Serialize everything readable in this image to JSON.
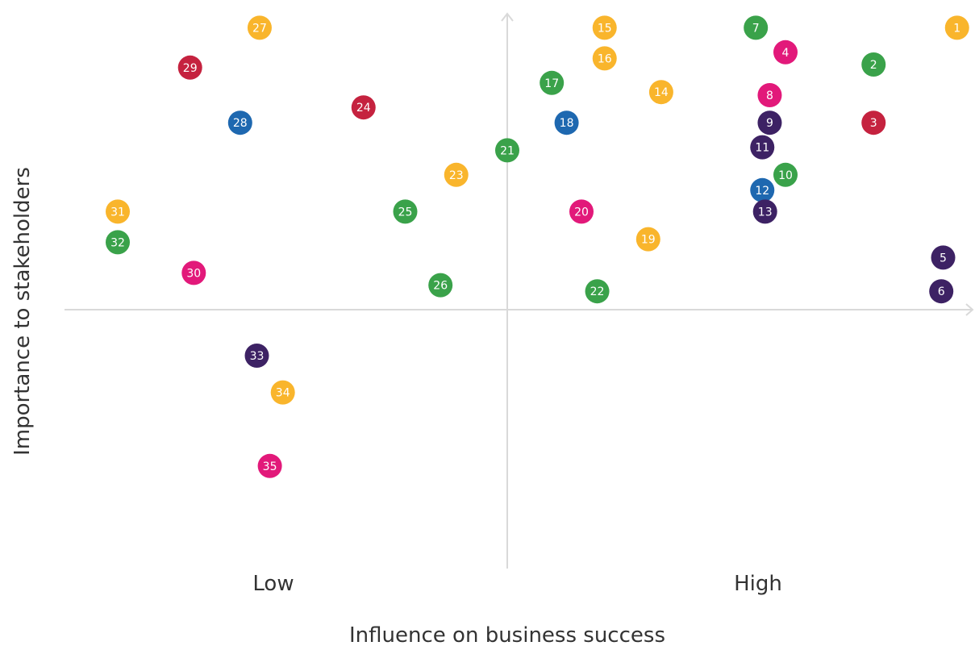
{
  "chart_data": {
    "type": "scatter",
    "title": "",
    "xlabel": "Influence on business success",
    "ylabel": "Importance to stakeholders",
    "x_tick_labels": [
      "Low",
      "High"
    ],
    "xlim": [
      -5,
      5
    ],
    "ylim": [
      -5,
      5
    ],
    "grid": false,
    "colors": {
      "orange": "#f9b52c",
      "green": "#3aa24a",
      "red": "#c5223f",
      "magenta": "#e2197a",
      "purple": "#3d2264",
      "blue": "#1e68b0"
    },
    "points": [
      {
        "label": "1",
        "x": 4.85,
        "y": 4.6,
        "color": "orange"
      },
      {
        "label": "2",
        "x": 3.95,
        "y": 4.0,
        "color": "green"
      },
      {
        "label": "3",
        "x": 3.95,
        "y": 3.05,
        "color": "red"
      },
      {
        "label": "4",
        "x": 3.0,
        "y": 4.2,
        "color": "magenta"
      },
      {
        "label": "5",
        "x": 4.7,
        "y": 0.85,
        "color": "purple"
      },
      {
        "label": "6",
        "x": 4.68,
        "y": 0.3,
        "color": "purple"
      },
      {
        "label": "7",
        "x": 2.68,
        "y": 4.6,
        "color": "green"
      },
      {
        "label": "8",
        "x": 2.83,
        "y": 3.5,
        "color": "magenta"
      },
      {
        "label": "9",
        "x": 2.83,
        "y": 3.05,
        "color": "purple"
      },
      {
        "label": "10",
        "x": 3.0,
        "y": 2.2,
        "color": "green"
      },
      {
        "label": "11",
        "x": 2.75,
        "y": 2.65,
        "color": "purple"
      },
      {
        "label": "12",
        "x": 2.75,
        "y": 1.95,
        "color": "blue"
      },
      {
        "label": "13",
        "x": 2.78,
        "y": 1.6,
        "color": "purple"
      },
      {
        "label": "14",
        "x": 1.66,
        "y": 3.55,
        "color": "orange"
      },
      {
        "label": "15",
        "x": 1.05,
        "y": 4.6,
        "color": "orange"
      },
      {
        "label": "16",
        "x": 1.05,
        "y": 4.1,
        "color": "orange"
      },
      {
        "label": "17",
        "x": 0.48,
        "y": 3.7,
        "color": "green"
      },
      {
        "label": "18",
        "x": 0.64,
        "y": 3.05,
        "color": "blue"
      },
      {
        "label": "19",
        "x": 1.52,
        "y": 1.15,
        "color": "orange"
      },
      {
        "label": "20",
        "x": 0.8,
        "y": 1.6,
        "color": "magenta"
      },
      {
        "label": "21",
        "x": 0.0,
        "y": 2.6,
        "color": "green"
      },
      {
        "label": "22",
        "x": 0.97,
        "y": 0.3,
        "color": "green"
      },
      {
        "label": "23",
        "x": -0.55,
        "y": 2.2,
        "color": "orange"
      },
      {
        "label": "24",
        "x": -1.55,
        "y": 3.3,
        "color": "red"
      },
      {
        "label": "25",
        "x": -1.1,
        "y": 1.6,
        "color": "green"
      },
      {
        "label": "26",
        "x": -0.72,
        "y": 0.4,
        "color": "green"
      },
      {
        "label": "27",
        "x": -2.67,
        "y": 4.6,
        "color": "orange"
      },
      {
        "label": "28",
        "x": -2.88,
        "y": 3.05,
        "color": "blue"
      },
      {
        "label": "29",
        "x": -3.42,
        "y": 3.95,
        "color": "red"
      },
      {
        "label": "30",
        "x": -3.38,
        "y": 0.6,
        "color": "magenta"
      },
      {
        "label": "31",
        "x": -4.2,
        "y": 1.6,
        "color": "orange"
      },
      {
        "label": "32",
        "x": -4.2,
        "y": 1.1,
        "color": "green"
      },
      {
        "label": "33",
        "x": -2.7,
        "y": -0.75,
        "color": "purple"
      },
      {
        "label": "34",
        "x": -2.42,
        "y": -1.35,
        "color": "orange"
      },
      {
        "label": "35",
        "x": -2.56,
        "y": -2.55,
        "color": "magenta"
      }
    ]
  }
}
